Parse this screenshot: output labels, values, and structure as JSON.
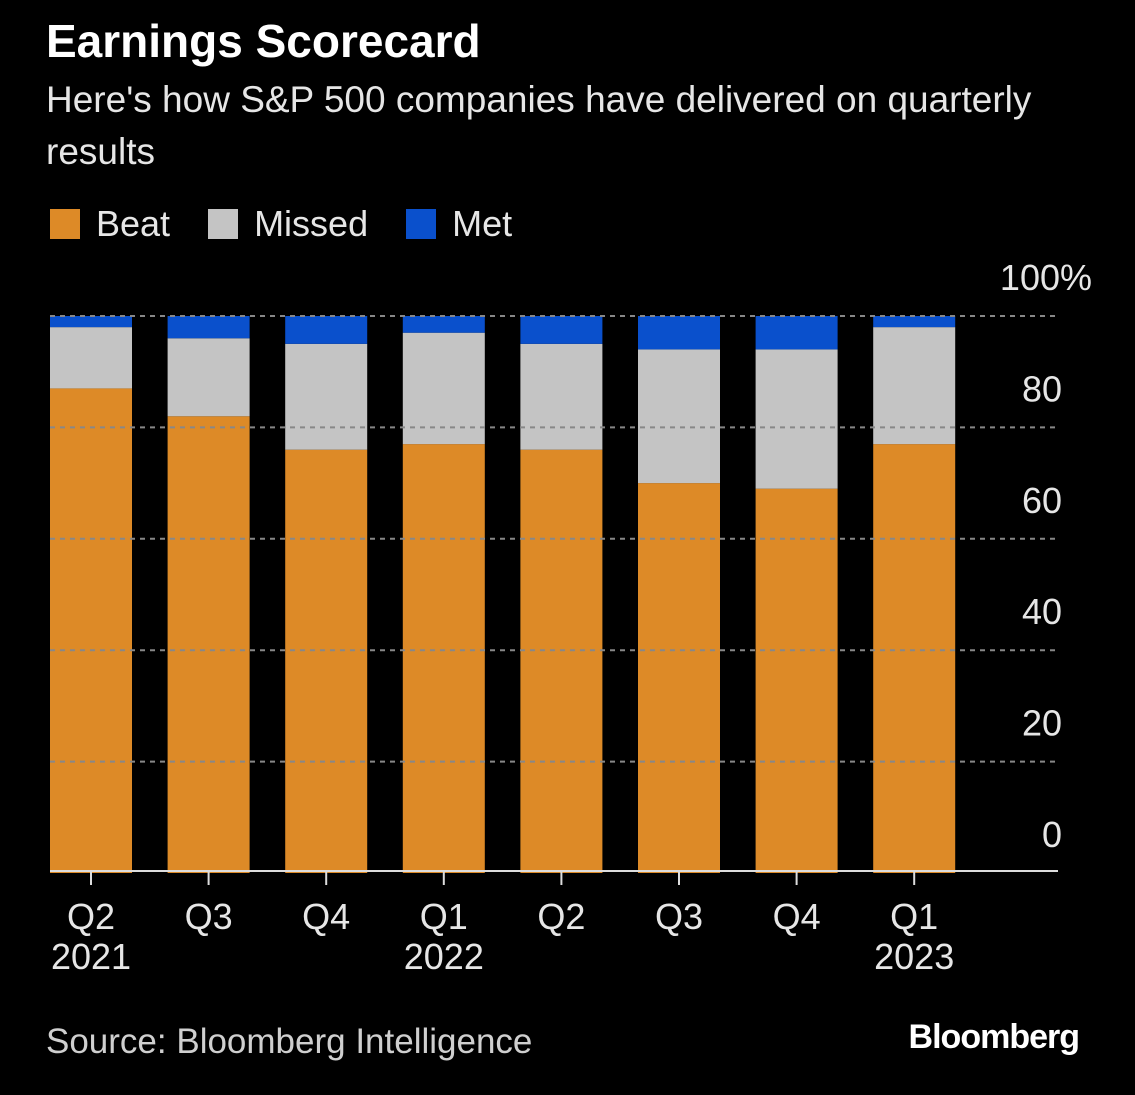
{
  "chart_data": {
    "type": "stacked_bar",
    "title": "Earnings Scorecard",
    "subtitle": "Here's how S&P 500 companies have delivered on quarterly results",
    "categories": [
      "Q2",
      "Q3",
      "Q4",
      "Q1",
      "Q2",
      "Q3",
      "Q4",
      "Q1"
    ],
    "years": [
      "2021",
      null,
      null,
      "2022",
      null,
      null,
      null,
      "2023"
    ],
    "series": [
      {
        "name": "Beat",
        "color": "#dd8a27",
        "values": [
          87,
          82,
          76,
          77,
          76,
          70,
          69,
          77
        ]
      },
      {
        "name": "Missed",
        "color": "#c4c4c4",
        "values": [
          11,
          14,
          19,
          20,
          19,
          24,
          25,
          21
        ]
      },
      {
        "name": "Met",
        "color": "#0a50cc",
        "values": [
          2,
          4,
          5,
          3,
          5,
          6,
          6,
          2
        ]
      }
    ],
    "ylim": [
      0,
      100
    ],
    "yticks": [
      0,
      20,
      40,
      60,
      80,
      {
        "value": 100,
        "label": "100%"
      }
    ],
    "grid": true,
    "source": "Source: Bloomberg Intelligence",
    "brand": "Bloomberg"
  }
}
